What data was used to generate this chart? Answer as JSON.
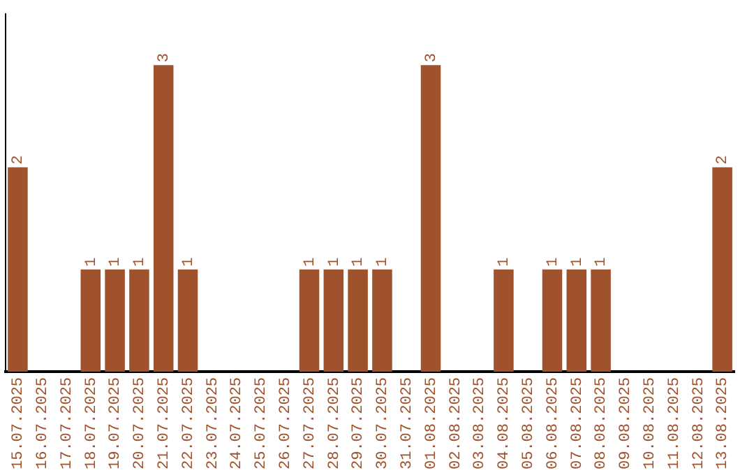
{
  "chart_data": {
    "type": "bar",
    "categories": [
      "15.07.2025",
      "16.07.2025",
      "17.07.2025",
      "18.07.2025",
      "19.07.2025",
      "20.07.2025",
      "21.07.2025",
      "22.07.2025",
      "23.07.2025",
      "24.07.2025",
      "25.07.2025",
      "26.07.2025",
      "27.07.2025",
      "28.07.2025",
      "29.07.2025",
      "30.07.2025",
      "31.07.2025",
      "01.08.2025",
      "02.08.2025",
      "03.08.2025",
      "04.08.2025",
      "05.08.2025",
      "06.08.2025",
      "07.08.2025",
      "08.08.2025",
      "09.08.2025",
      "10.08.2025",
      "11.08.2025",
      "12.08.2025",
      "13.08.2025"
    ],
    "values": [
      2,
      0,
      0,
      1,
      1,
      1,
      3,
      1,
      0,
      0,
      0,
      0,
      1,
      1,
      1,
      1,
      0,
      3,
      0,
      0,
      1,
      0,
      1,
      1,
      1,
      0,
      0,
      0,
      0,
      2
    ],
    "value_labels": [
      "2",
      null,
      null,
      "1",
      "1",
      "1",
      "3",
      "1",
      null,
      null,
      null,
      null,
      "1",
      "1",
      "1",
      "1",
      null,
      "3",
      null,
      null,
      "1",
      null,
      "1",
      "1",
      "1",
      null,
      null,
      null,
      null,
      "2"
    ],
    "color": "#a0522d",
    "grid": false,
    "legend": false,
    "tick_labels": "x"
  }
}
